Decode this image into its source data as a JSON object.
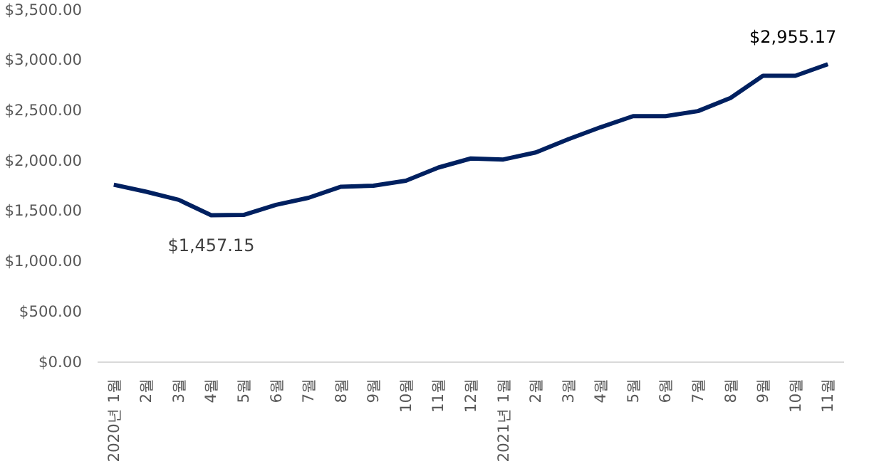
{
  "chart_data": {
    "type": "line",
    "categories": [
      "2020년 1월",
      "2월",
      "3월",
      "4월",
      "5월",
      "6월",
      "7월",
      "8월",
      "9월",
      "10월",
      "11월",
      "12월",
      "2021년 1월",
      "2월",
      "3월",
      "4월",
      "5월",
      "6월",
      "7월",
      "8월",
      "9월",
      "10월",
      "11월"
    ],
    "series": [
      {
        "color": "#002060",
        "values": [
          1760,
          1690,
          1610,
          1457.15,
          1460,
          1560,
          1630,
          1740,
          1750,
          1800,
          1930,
          2020,
          2010,
          2080,
          2210,
          2330,
          2440,
          2440,
          2490,
          2620,
          2840,
          2840,
          2955.17
        ],
        "value_labels": [
          null,
          null,
          null,
          "$1,457.15",
          null,
          null,
          null,
          null,
          null,
          null,
          null,
          null,
          null,
          null,
          null,
          null,
          null,
          null,
          null,
          null,
          null,
          null,
          "$2,955.17"
        ]
      }
    ],
    "ylim": [
      0,
      3500
    ],
    "yticks": [
      {
        "value": 0,
        "label": "$0.00"
      },
      {
        "value": 500,
        "label": "$500.00"
      },
      {
        "value": 1000,
        "label": "$1,000.00"
      },
      {
        "value": 1500,
        "label": "$1,500.00"
      },
      {
        "value": 2000,
        "label": "$2,000.00"
      },
      {
        "value": 2500,
        "label": "$2,500.00"
      },
      {
        "value": 3000,
        "label": "$3,000.00"
      },
      {
        "value": 3500,
        "label": "$3,500.00"
      }
    ],
    "grid": false,
    "marker": "none",
    "line_style": "solid"
  }
}
